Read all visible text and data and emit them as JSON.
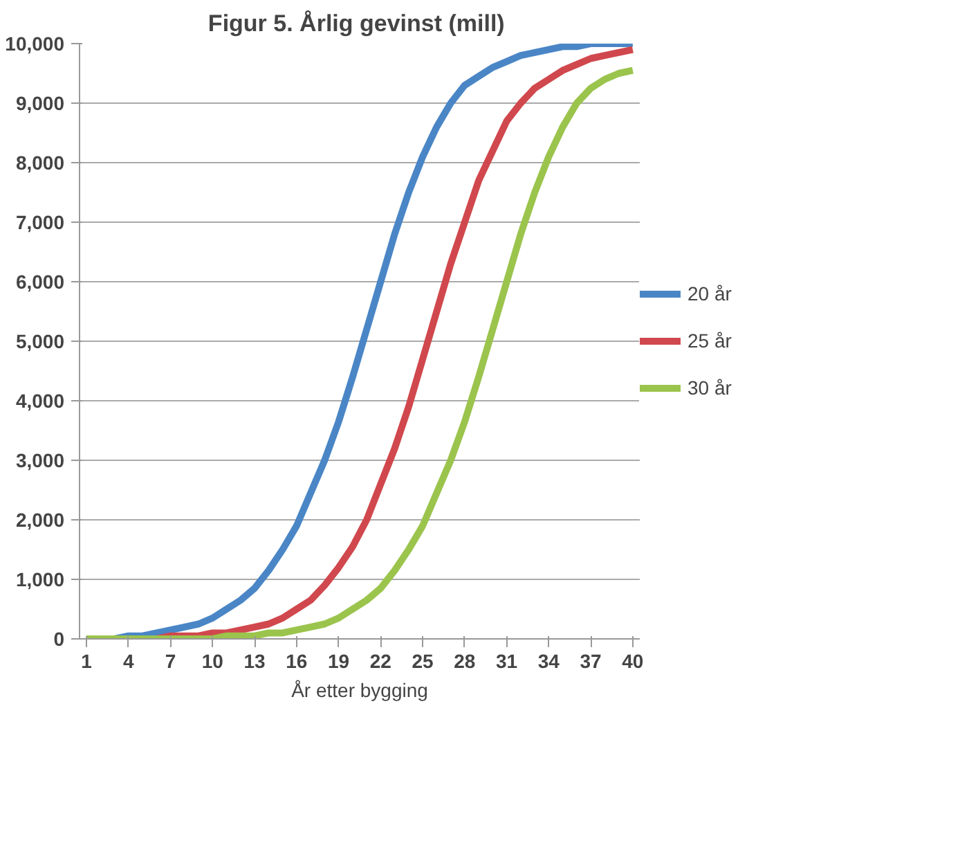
{
  "chart_data": {
    "type": "line",
    "title": "Figur 5.  Årlig gevinst (mill)",
    "xlabel": "År etter bygging",
    "x": [
      1,
      2,
      3,
      4,
      5,
      6,
      7,
      8,
      9,
      10,
      11,
      12,
      13,
      14,
      15,
      16,
      17,
      18,
      19,
      20,
      21,
      22,
      23,
      24,
      25,
      26,
      27,
      28,
      29,
      30,
      31,
      32,
      33,
      34,
      35,
      36,
      37,
      38,
      39,
      40
    ],
    "xlim": [
      0.5,
      40.5
    ],
    "xticks": [
      1,
      4,
      7,
      10,
      13,
      16,
      19,
      22,
      25,
      28,
      31,
      34,
      37,
      40
    ],
    "ylim": [
      0,
      10000
    ],
    "yticks": [
      0,
      {
        "value": 1000,
        "label": "1,000"
      },
      {
        "value": 2000,
        "label": "2,000"
      },
      {
        "value": 3000,
        "label": "3,000"
      },
      {
        "value": 4000,
        "label": "4,000"
      },
      {
        "value": 5000,
        "label": "5,000"
      },
      {
        "value": 6000,
        "label": "6,000"
      },
      {
        "value": 7000,
        "label": "7,000"
      },
      {
        "value": 8000,
        "label": "8,000"
      },
      {
        "value": 9000,
        "label": "9,000"
      },
      {
        "value": 10000,
        "label": "10,000"
      }
    ],
    "grid": "y",
    "legend": "right",
    "marker": "none",
    "line_style": "solid",
    "series": [
      {
        "name": "20 år",
        "color": "#4a86c6",
        "values": [
          0,
          0,
          0,
          50,
          50,
          100,
          150,
          200,
          250,
          350,
          500,
          650,
          850,
          1150,
          1500,
          1900,
          2450,
          3000,
          3650,
          4400,
          5200,
          6000,
          6800,
          7500,
          8100,
          8600,
          9000,
          9300,
          9450,
          9600,
          9700,
          9800,
          9850,
          9900,
          9950,
          9950,
          10000,
          10000,
          10000,
          10000
        ]
      },
      {
        "name": "25 år",
        "color": "#d0484d",
        "values": [
          null,
          null,
          null,
          null,
          0,
          0,
          50,
          50,
          50,
          100,
          100,
          150,
          200,
          250,
          350,
          500,
          650,
          900,
          1200,
          1550,
          2000,
          2600,
          3200,
          3900,
          4700,
          5500,
          6300,
          7000,
          7700,
          8200,
          8700,
          9000,
          9250,
          9400,
          9550,
          9650,
          9750,
          9800,
          9850,
          9900
        ]
      },
      {
        "name": "30 år",
        "color": "#9bc44d",
        "values": [
          0,
          0,
          0,
          0,
          0,
          0,
          0,
          0,
          0,
          0,
          50,
          50,
          50,
          100,
          100,
          150,
          200,
          250,
          350,
          500,
          650,
          850,
          1150,
          1500,
          1900,
          2450,
          3000,
          3650,
          4400,
          5200,
          6000,
          6800,
          7500,
          8100,
          8600,
          9000,
          9250,
          9400,
          9500,
          9550
        ]
      }
    ]
  }
}
